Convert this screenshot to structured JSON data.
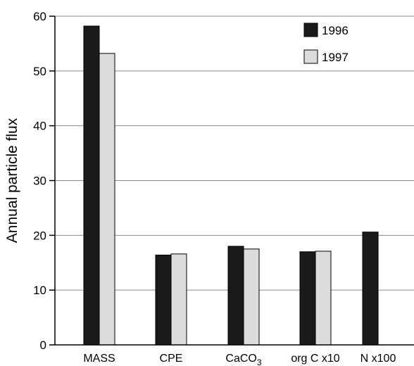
{
  "chart_data": {
    "type": "bar",
    "title": "",
    "xlabel": "",
    "ylabel": "Annual particle flux",
    "categories": [
      "MASS",
      "CPE",
      "CaCO3",
      "org C x10",
      "N x100"
    ],
    "category_labels": [
      {
        "main": "MASS",
        "sub": ""
      },
      {
        "main": "CPE",
        "sub": ""
      },
      {
        "main": "CaCO",
        "sub": "3"
      },
      {
        "main": "org C x10",
        "sub": ""
      },
      {
        "main": "N x100",
        "sub": ""
      }
    ],
    "series": [
      {
        "name": "1996",
        "color": "#1a1a1a",
        "values": [
          58.2,
          16.4,
          18.0,
          17.0,
          20.6
        ]
      },
      {
        "name": "1997",
        "color": "#dcdcdc",
        "values": [
          53.2,
          16.6,
          17.5,
          17.1,
          null
        ]
      }
    ],
    "ylim": [
      0,
      60
    ],
    "yticks": [
      0,
      10,
      20,
      30,
      40,
      50,
      60
    ],
    "grid": true,
    "legend_position": "top-right"
  }
}
